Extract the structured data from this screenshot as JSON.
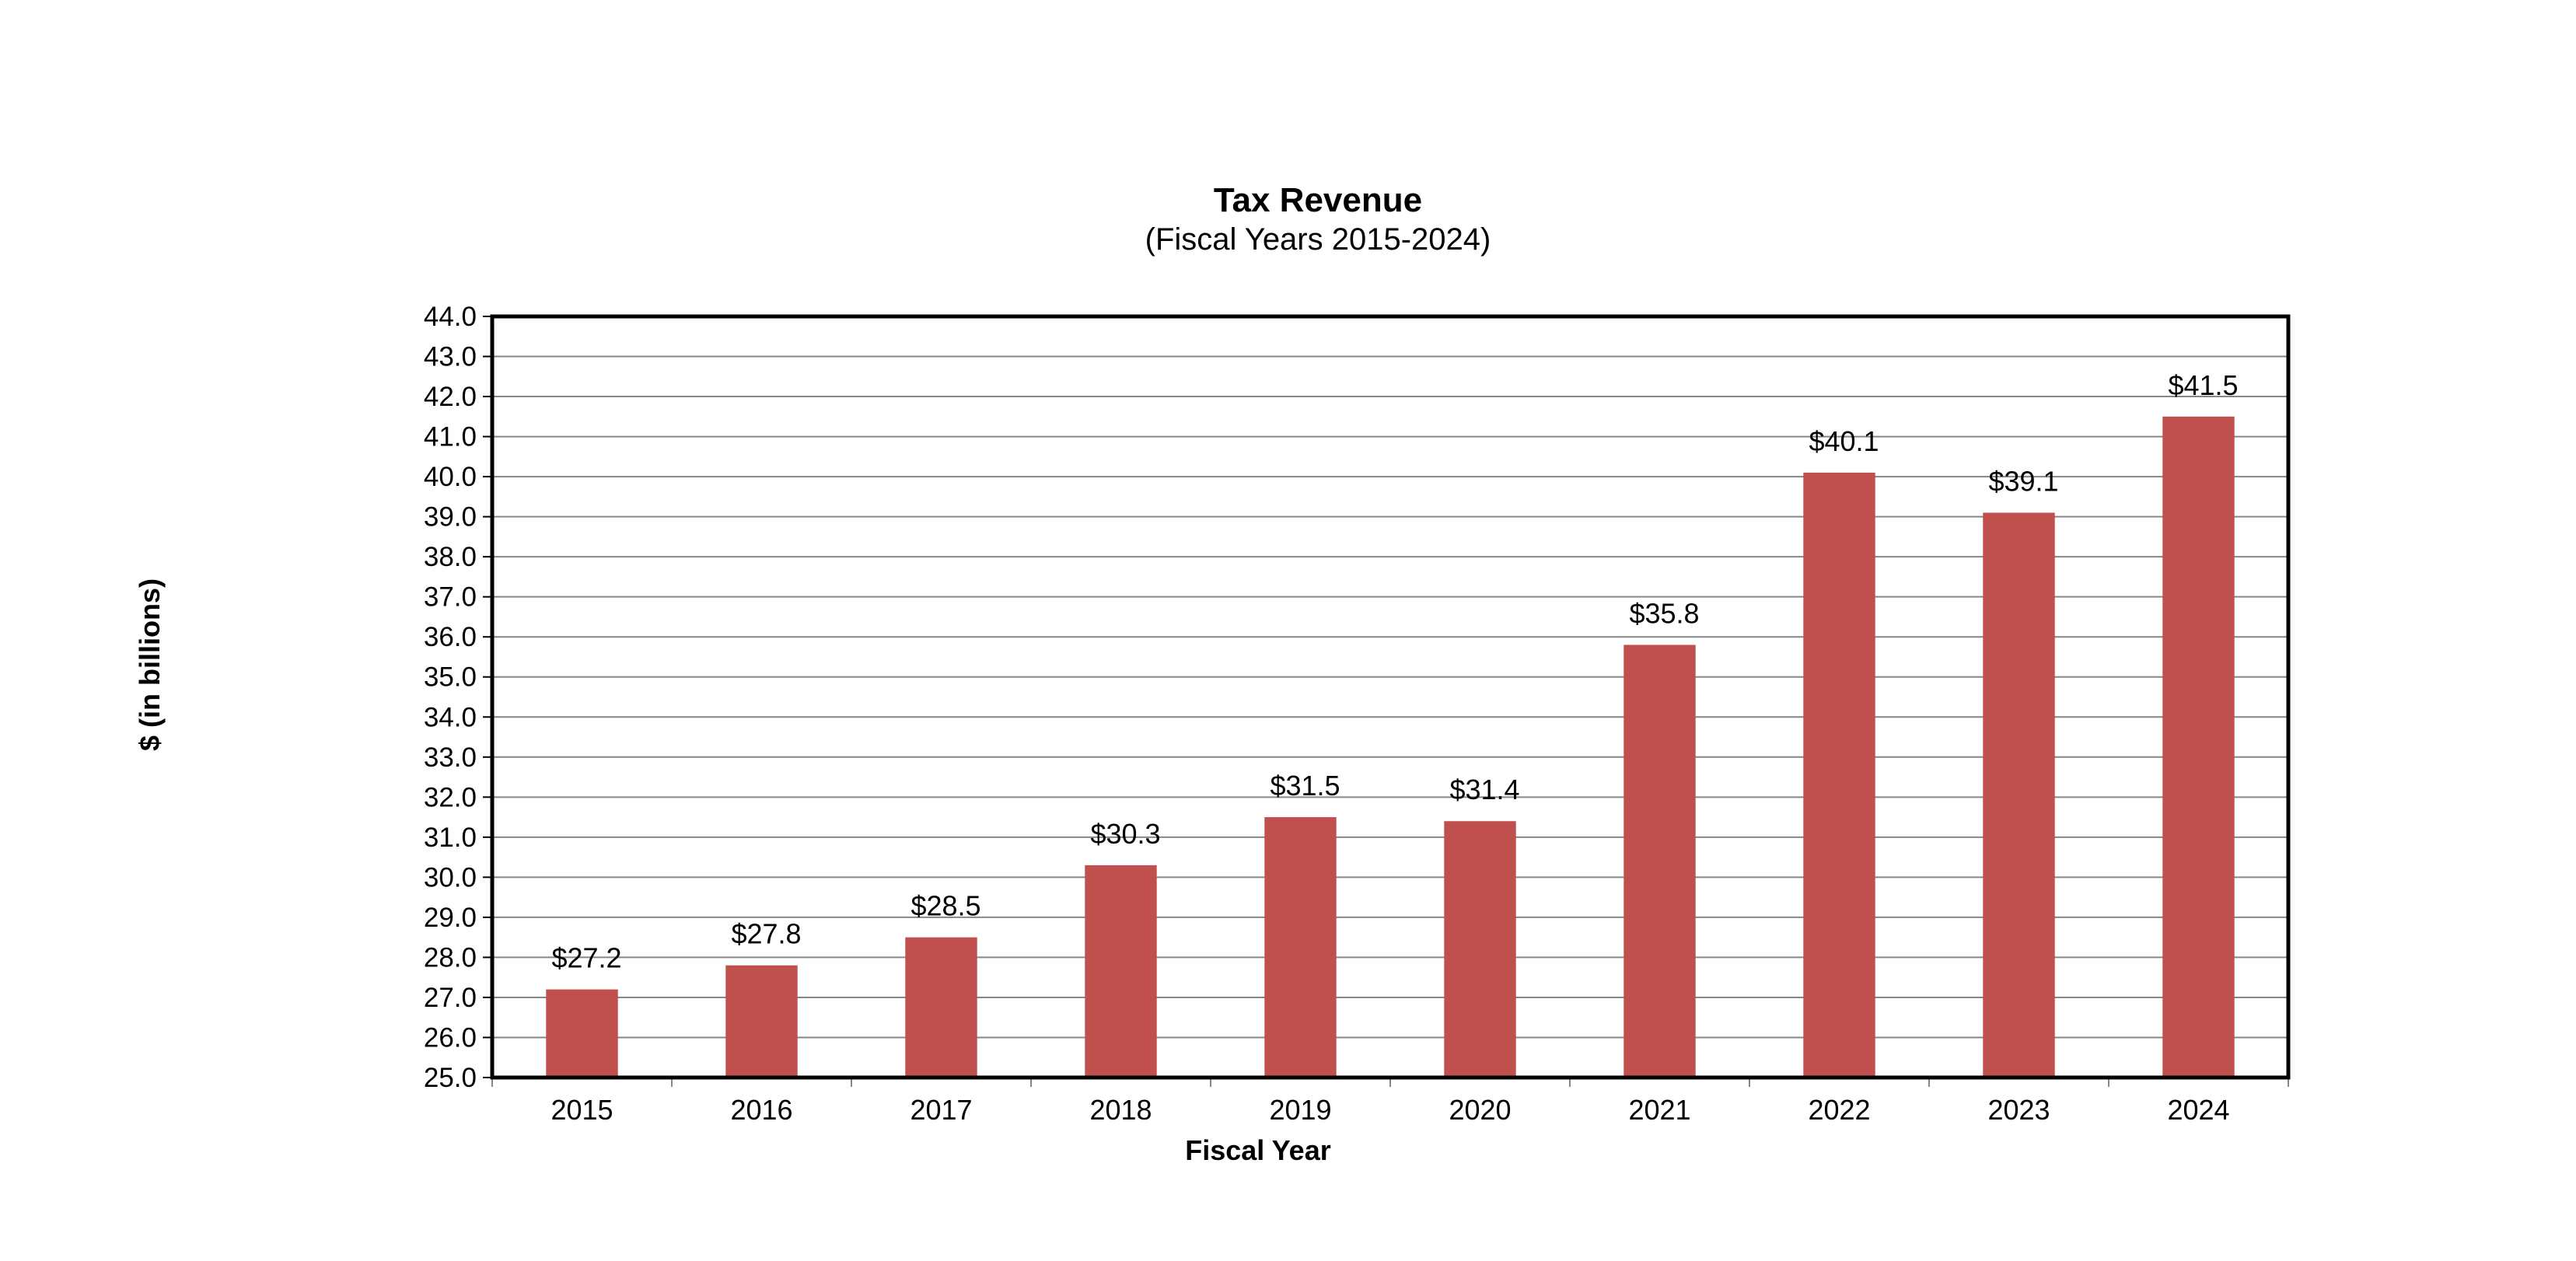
{
  "chart_data": {
    "type": "bar",
    "title": "Tax Revenue",
    "subtitle": "(Fiscal Years 2015-2024)",
    "xlabel": "Fiscal Year",
    "ylabel": "$ (in billions)",
    "categories": [
      "2015",
      "2016",
      "2017",
      "2018",
      "2019",
      "2020",
      "2021",
      "2022",
      "2023",
      "2024"
    ],
    "values": [
      27.2,
      27.8,
      28.5,
      30.3,
      31.5,
      31.4,
      35.8,
      40.1,
      39.1,
      41.5
    ],
    "data_labels": [
      "$27.2",
      "$27.8",
      "$28.5",
      "$30.3",
      "$31.5",
      "$31.4",
      "$35.8",
      "$40.1",
      "$39.1",
      "$41.5"
    ],
    "ylim": [
      25.0,
      44.0
    ],
    "ytick_step": 1.0,
    "ytick_decimals": 1,
    "grid": true,
    "legend": "none",
    "colors": {
      "bar": "#c0504d",
      "grid": "#868686",
      "frame": "#000000"
    }
  }
}
